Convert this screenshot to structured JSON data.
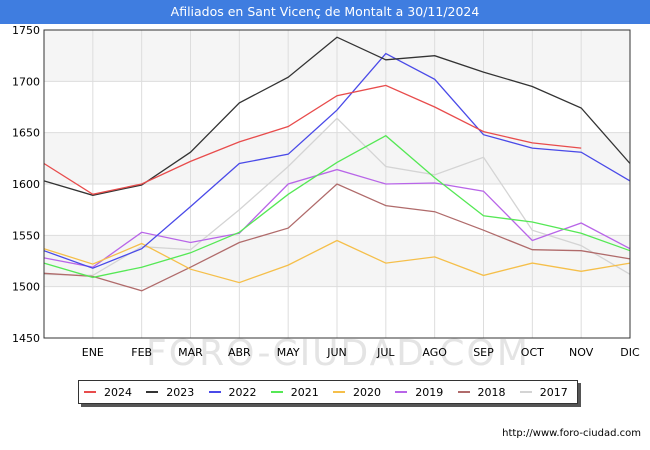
{
  "title": "Afiliados en Sant Vicenç de Montalt a 30/11/2024",
  "watermark": "FORO-CIUDAD.COM",
  "source_url": "http://www.foro-ciudad.com",
  "chart_data": {
    "type": "line",
    "categories": [
      "",
      "ENE",
      "FEB",
      "MAR",
      "ABR",
      "MAY",
      "JUN",
      "JUL",
      "AGO",
      "SEP",
      "OCT",
      "NOV",
      "DIC"
    ],
    "ylim": [
      1450,
      1750
    ],
    "yticks": [
      1450,
      1500,
      1550,
      1600,
      1650,
      1700,
      1750
    ],
    "grid": true,
    "legend_position": "bottom",
    "series": [
      {
        "name": "2024",
        "color": "#e84c4c",
        "values": [
          1620,
          1590,
          1600,
          1622,
          1641,
          1656,
          1686,
          1696,
          1675,
          1651,
          1640,
          1635,
          null
        ]
      },
      {
        "name": "2023",
        "color": "#333333",
        "values": [
          1603,
          1589,
          1599,
          1631,
          1679,
          1704,
          1743,
          1721,
          1725,
          1709,
          1695,
          1674,
          1620
        ]
      },
      {
        "name": "2022",
        "color": "#4a4ae8",
        "values": [
          1535,
          1518,
          1537,
          1578,
          1620,
          1629,
          1672,
          1727,
          1702,
          1648,
          1635,
          1631,
          1603
        ]
      },
      {
        "name": "2021",
        "color": "#55e855",
        "values": [
          1523,
          1509,
          1519,
          1533,
          1553,
          1590,
          1621,
          1647,
          1606,
          1569,
          1563,
          1552,
          1535
        ]
      },
      {
        "name": "2020",
        "color": "#f5bf4a",
        "values": [
          1537,
          1522,
          1542,
          1517,
          1504,
          1521,
          1545,
          1523,
          1529,
          1511,
          1523,
          1515,
          1523
        ]
      },
      {
        "name": "2019",
        "color": "#b865e8",
        "values": [
          1528,
          1519,
          1553,
          1543,
          1552,
          1600,
          1614,
          1600,
          1601,
          1593,
          1545,
          1562,
          1537
        ]
      },
      {
        "name": "2018",
        "color": "#b06b6b",
        "values": [
          1513,
          1510,
          1496,
          1519,
          1543,
          1557,
          1600,
          1579,
          1573,
          1555,
          1536,
          1535,
          1527
        ]
      },
      {
        "name": "2017",
        "color": "#d4d4d4",
        "values": [
          1512,
          1511,
          1539,
          1536,
          1575,
          1617,
          1664,
          1617,
          1609,
          1626,
          1555,
          1540,
          1512
        ]
      }
    ]
  }
}
